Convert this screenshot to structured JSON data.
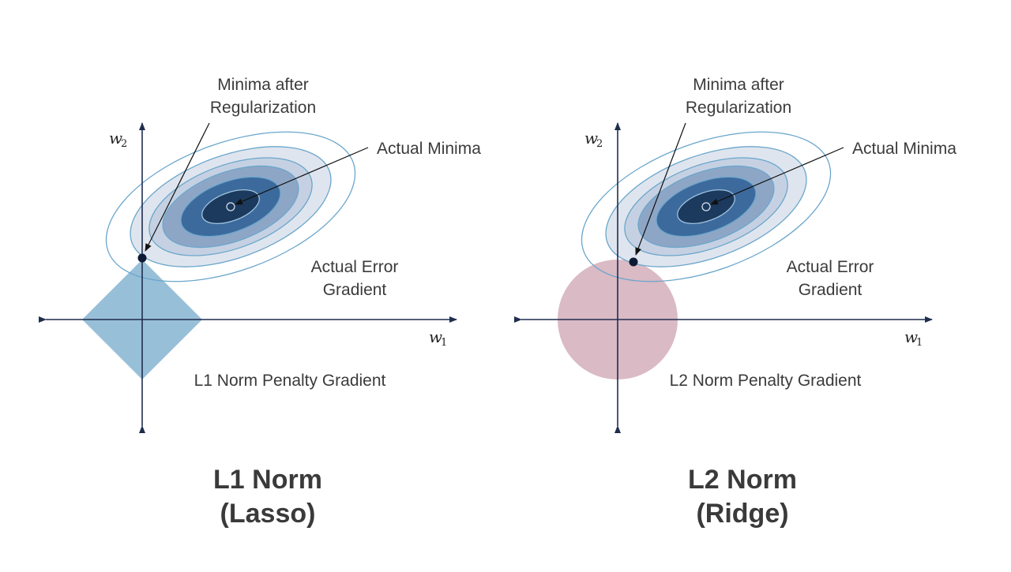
{
  "colors": {
    "axis": "#1f2d4e",
    "contour_outer": "#dfe5ee",
    "contour_2": "#c5d1e2",
    "contour_3": "#8ea6c6",
    "contour_4": "#3d6a9c",
    "contour_core": "#1c3a5e",
    "contour_stroke": "#6aa6cc",
    "l1_penalty": "#8db8d4",
    "l2_penalty": "#d6b3be",
    "point": "#0c1a33"
  },
  "panels": [
    {
      "id": "l1",
      "minima_after_line1": "Minima after",
      "minima_after_line2": "Regularization",
      "actual_minima": "Actual Minima",
      "error_line1": "Actual Error",
      "error_line2": "Gradient",
      "penalty_label": "L1 Norm Penalty Gradient",
      "x_axis": "w",
      "x_sub": "1",
      "y_axis": "w",
      "y_sub": "2",
      "title_line1": "L1 Norm",
      "title_line2": "(Lasso)",
      "penalty_shape": "diamond"
    },
    {
      "id": "l2",
      "minima_after_line1": "Minima after",
      "minima_after_line2": "Regularization",
      "actual_minima": "Actual Minima",
      "error_line1": "Actual Error",
      "error_line2": "Gradient",
      "penalty_label": "L2 Norm Penalty Gradient",
      "x_axis": "w",
      "x_sub": "1",
      "y_axis": "w",
      "y_sub": "2",
      "title_line1": "L2 Norm",
      "title_line2": "(Ridge)",
      "penalty_shape": "circle"
    }
  ]
}
